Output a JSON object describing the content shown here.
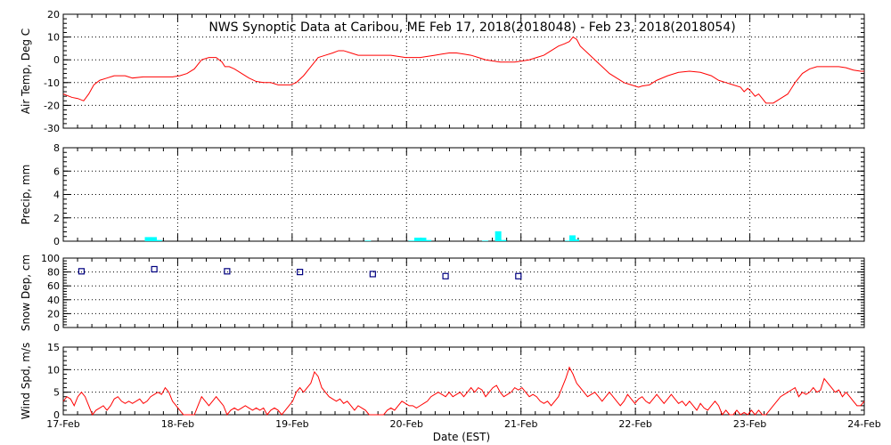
{
  "title": "NWS Synoptic Data at Caribou, ME   Feb 17, 2018(2018048) - Feb 23, 2018(2018054)",
  "xlabel": "Date (EST)",
  "x_ticks": [
    "17-Feb",
    "18-Feb",
    "19-Feb",
    "20-Feb",
    "21-Feb",
    "22-Feb",
    "23-Feb",
    "24-Feb"
  ],
  "colors": {
    "temp": "#ff0000",
    "precip": "#00ffff",
    "snow": "#000080",
    "wind": "#ff0000",
    "axes": "#000000"
  },
  "chart_data": [
    {
      "type": "line",
      "ylabel": "Air Temp, Deg C",
      "ylim": [
        -30,
        20
      ],
      "yticks": [
        "20",
        "10",
        "0",
        "-10",
        "-20",
        "-30"
      ],
      "grid": true,
      "x_unit": "days from 17-Feb 00:00",
      "points": [
        [
          0.0,
          -15
        ],
        [
          0.12,
          -16.5
        ],
        [
          0.2,
          -17
        ],
        [
          0.28,
          -18
        ],
        [
          0.35,
          -15
        ],
        [
          0.42,
          -11
        ],
        [
          0.5,
          -9
        ],
        [
          0.6,
          -8
        ],
        [
          0.7,
          -7
        ],
        [
          0.85,
          -7
        ],
        [
          0.95,
          -8
        ],
        [
          1.1,
          -7.5
        ],
        [
          1.3,
          -7.5
        ],
        [
          1.5,
          -7.5
        ],
        [
          1.6,
          -7
        ],
        [
          1.7,
          -6
        ],
        [
          1.8,
          -4
        ],
        [
          1.9,
          0
        ],
        [
          2.0,
          1
        ],
        [
          2.1,
          1
        ],
        [
          2.18,
          -1
        ],
        [
          2.22,
          -3
        ],
        [
          2.28,
          -3
        ],
        [
          2.35,
          -4
        ],
        [
          2.45,
          -6
        ],
        [
          2.55,
          -8
        ],
        [
          2.65,
          -9.5
        ],
        [
          2.75,
          -10
        ],
        [
          2.85,
          -10
        ],
        [
          2.95,
          -11
        ],
        [
          3.05,
          -11
        ],
        [
          3.12,
          -11
        ],
        [
          3.2,
          -10
        ],
        [
          3.3,
          -7
        ],
        [
          3.4,
          -3
        ],
        [
          3.5,
          1
        ],
        [
          3.6,
          2
        ],
        [
          3.7,
          3
        ],
        [
          3.78,
          4
        ],
        [
          3.85,
          4
        ],
        [
          3.95,
          3
        ],
        [
          4.05,
          2
        ],
        [
          4.2,
          2
        ],
        [
          4.35,
          2
        ],
        [
          4.5,
          2
        ],
        [
          4.6,
          1.5
        ],
        [
          4.7,
          1
        ],
        [
          4.8,
          1
        ],
        [
          4.9,
          1
        ],
        [
          5.0,
          1.5
        ],
        [
          5.1,
          2
        ],
        [
          5.2,
          2.5
        ],
        [
          5.3,
          3
        ],
        [
          5.4,
          3
        ],
        [
          5.5,
          2.5
        ],
        [
          5.6,
          2
        ],
        [
          5.7,
          1
        ],
        [
          5.8,
          0
        ],
        [
          5.9,
          -0.5
        ],
        [
          6.0,
          -1
        ],
        [
          6.1,
          -1
        ],
        [
          6.2,
          -1
        ],
        [
          6.3,
          -0.5
        ],
        [
          6.4,
          0
        ],
        [
          6.5,
          1
        ],
        [
          6.6,
          2
        ],
        [
          6.7,
          4
        ],
        [
          6.8,
          6
        ],
        [
          6.88,
          7
        ],
        [
          6.95,
          8
        ],
        [
          7.0,
          10
        ],
        [
          7.05,
          9
        ],
        [
          7.1,
          6
        ],
        [
          7.2,
          3
        ],
        [
          7.3,
          0
        ],
        [
          7.4,
          -3
        ],
        [
          7.5,
          -6
        ],
        [
          7.6,
          -8
        ],
        [
          7.7,
          -10
        ],
        [
          7.8,
          -11
        ],
        [
          7.9,
          -12
        ],
        [
          7.95,
          -11.5
        ],
        [
          8.05,
          -11
        ],
        [
          8.15,
          -9
        ],
        [
          8.3,
          -7
        ],
        [
          8.45,
          -5.5
        ],
        [
          8.6,
          -5
        ],
        [
          8.75,
          -5.5
        ],
        [
          8.9,
          -7
        ],
        [
          9.0,
          -9
        ],
        [
          9.1,
          -10
        ],
        [
          9.2,
          -11
        ],
        [
          9.3,
          -12
        ],
        [
          9.35,
          -14
        ],
        [
          9.4,
          -12.5
        ],
        [
          9.45,
          -14
        ],
        [
          9.5,
          -16
        ],
        [
          9.55,
          -15
        ],
        [
          9.6,
          -17
        ],
        [
          9.65,
          -19
        ],
        [
          9.75,
          -19
        ],
        [
          9.85,
          -17
        ],
        [
          9.95,
          -15
        ],
        [
          10.05,
          -10
        ],
        [
          10.15,
          -6
        ],
        [
          10.25,
          -4
        ],
        [
          10.35,
          -3
        ],
        [
          10.45,
          -3
        ],
        [
          10.55,
          -3
        ],
        [
          10.65,
          -3
        ],
        [
          10.75,
          -3.5
        ],
        [
          10.85,
          -4.5
        ],
        [
          10.95,
          -5
        ],
        [
          11.0,
          -5
        ]
      ]
    },
    {
      "type": "bar",
      "ylabel": "Precip, mm",
      "ylim": [
        0,
        8
      ],
      "yticks": [
        "8",
        "6",
        "4",
        "2",
        "0"
      ],
      "grid": true,
      "x_unit": "days from 17-Feb 00:00",
      "bars": [
        [
          1.12,
          0.35
        ],
        [
          1.2,
          0.35
        ],
        [
          1.27,
          0.1
        ],
        [
          4.14,
          0.05
        ],
        [
          4.74,
          0.05
        ],
        [
          4.82,
          0.3
        ],
        [
          4.9,
          0.3
        ],
        [
          4.97,
          0.1
        ],
        [
          5.75,
          0.05
        ],
        [
          5.93,
          0.85
        ],
        [
          6.0,
          0.1
        ],
        [
          6.89,
          0.05
        ],
        [
          6.95,
          0.5
        ],
        [
          7.0,
          0.15
        ]
      ]
    },
    {
      "type": "scatter",
      "ylabel": "Snow Dep, cm",
      "ylim": [
        0,
        100
      ],
      "yticks": [
        "100",
        "80",
        "60",
        "40",
        "20",
        "0"
      ],
      "grid": true,
      "x_unit": "days from 17-Feb 00:00",
      "points": [
        [
          0.25,
          81
        ],
        [
          1.25,
          84
        ],
        [
          2.25,
          81
        ],
        [
          3.25,
          80
        ],
        [
          4.25,
          77
        ],
        [
          5.25,
          74
        ],
        [
          6.25,
          74
        ]
      ]
    },
    {
      "type": "line",
      "ylabel": "Wind Spd, m/s",
      "ylim": [
        0,
        15
      ],
      "yticks": [
        "15",
        "10",
        "5",
        "0"
      ],
      "grid": true,
      "x_unit": "days from 17-Feb 00:00",
      "points": [
        [
          0.0,
          3
        ],
        [
          0.05,
          4
        ],
        [
          0.1,
          3.5
        ],
        [
          0.15,
          2
        ],
        [
          0.2,
          4
        ],
        [
          0.25,
          5
        ],
        [
          0.3,
          4
        ],
        [
          0.35,
          2
        ],
        [
          0.4,
          0
        ],
        [
          0.45,
          1
        ],
        [
          0.5,
          1.5
        ],
        [
          0.55,
          2
        ],
        [
          0.6,
          1
        ],
        [
          0.65,
          2
        ],
        [
          0.7,
          3.5
        ],
        [
          0.75,
          4
        ],
        [
          0.8,
          3
        ],
        [
          0.85,
          2.5
        ],
        [
          0.9,
          3
        ],
        [
          0.95,
          2.5
        ],
        [
          1.0,
          3
        ],
        [
          1.05,
          3.5
        ],
        [
          1.1,
          2.5
        ],
        [
          1.15,
          3
        ],
        [
          1.2,
          4
        ],
        [
          1.25,
          4.5
        ],
        [
          1.3,
          5
        ],
        [
          1.35,
          4.5
        ],
        [
          1.4,
          6
        ],
        [
          1.45,
          5
        ],
        [
          1.5,
          3
        ],
        [
          1.55,
          2
        ],
        [
          1.6,
          1
        ],
        [
          1.65,
          0
        ],
        [
          1.7,
          0
        ],
        [
          1.75,
          0
        ],
        [
          1.8,
          0
        ],
        [
          1.85,
          2
        ],
        [
          1.9,
          4
        ],
        [
          1.95,
          3
        ],
        [
          2.0,
          2
        ],
        [
          2.05,
          3
        ],
        [
          2.1,
          4
        ],
        [
          2.15,
          3
        ],
        [
          2.2,
          2
        ],
        [
          2.25,
          0
        ],
        [
          2.3,
          1
        ],
        [
          2.35,
          1.5
        ],
        [
          2.4,
          1
        ],
        [
          2.45,
          1.5
        ],
        [
          2.5,
          2
        ],
        [
          2.55,
          1.5
        ],
        [
          2.6,
          1
        ],
        [
          2.65,
          1.5
        ],
        [
          2.7,
          1
        ],
        [
          2.75,
          1.5
        ],
        [
          2.8,
          0
        ],
        [
          2.85,
          1
        ],
        [
          2.9,
          1.5
        ],
        [
          2.95,
          1
        ],
        [
          3.0,
          0
        ],
        [
          3.05,
          1
        ],
        [
          3.1,
          2
        ],
        [
          3.15,
          3
        ],
        [
          3.2,
          5
        ],
        [
          3.25,
          6
        ],
        [
          3.3,
          5
        ],
        [
          3.35,
          6
        ],
        [
          3.4,
          7
        ],
        [
          3.45,
          9.5
        ],
        [
          3.5,
          8.5
        ],
        [
          3.55,
          6
        ],
        [
          3.6,
          5
        ],
        [
          3.65,
          4
        ],
        [
          3.7,
          3.5
        ],
        [
          3.75,
          3
        ],
        [
          3.8,
          3.5
        ],
        [
          3.85,
          2.5
        ],
        [
          3.9,
          3
        ],
        [
          3.95,
          2
        ],
        [
          4.0,
          1
        ],
        [
          4.05,
          2
        ],
        [
          4.1,
          1.5
        ],
        [
          4.15,
          1
        ],
        [
          4.2,
          0
        ],
        [
          4.25,
          0
        ],
        [
          4.3,
          0
        ],
        [
          4.35,
          0
        ],
        [
          4.4,
          0
        ],
        [
          4.45,
          1
        ],
        [
          4.5,
          1.5
        ],
        [
          4.55,
          1
        ],
        [
          4.6,
          2
        ],
        [
          4.65,
          3
        ],
        [
          4.7,
          2.5
        ],
        [
          4.75,
          2
        ],
        [
          4.8,
          2
        ],
        [
          4.85,
          1.5
        ],
        [
          4.9,
          2
        ],
        [
          4.95,
          2.5
        ],
        [
          5.0,
          3
        ],
        [
          5.05,
          4
        ],
        [
          5.1,
          4.5
        ],
        [
          5.15,
          5
        ],
        [
          5.2,
          4.5
        ],
        [
          5.25,
          4
        ],
        [
          5.3,
          5
        ],
        [
          5.35,
          4
        ],
        [
          5.4,
          4.5
        ],
        [
          5.45,
          5
        ],
        [
          5.5,
          4
        ],
        [
          5.55,
          5
        ],
        [
          5.6,
          6
        ],
        [
          5.65,
          5
        ],
        [
          5.7,
          6
        ],
        [
          5.75,
          5.5
        ],
        [
          5.8,
          4
        ],
        [
          5.85,
          5
        ],
        [
          5.9,
          6
        ],
        [
          5.95,
          6.5
        ],
        [
          6.0,
          5
        ],
        [
          6.05,
          4
        ],
        [
          6.1,
          4.5
        ],
        [
          6.15,
          5
        ],
        [
          6.2,
          6
        ],
        [
          6.25,
          5.5
        ],
        [
          6.3,
          6
        ],
        [
          6.35,
          5
        ],
        [
          6.4,
          4
        ],
        [
          6.45,
          4.5
        ],
        [
          6.5,
          4
        ],
        [
          6.55,
          3
        ],
        [
          6.6,
          2.5
        ],
        [
          6.65,
          3
        ],
        [
          6.7,
          2
        ],
        [
          6.75,
          3
        ],
        [
          6.8,
          4
        ],
        [
          6.85,
          6
        ],
        [
          6.9,
          8
        ],
        [
          6.95,
          10.5
        ],
        [
          7.0,
          9
        ],
        [
          7.05,
          7
        ],
        [
          7.1,
          6
        ],
        [
          7.15,
          5
        ],
        [
          7.2,
          4
        ],
        [
          7.25,
          4.5
        ],
        [
          7.3,
          5
        ],
        [
          7.35,
          4
        ],
        [
          7.4,
          3
        ],
        [
          7.45,
          4
        ],
        [
          7.5,
          5
        ],
        [
          7.55,
          4
        ],
        [
          7.6,
          3
        ],
        [
          7.65,
          2
        ],
        [
          7.7,
          3
        ],
        [
          7.75,
          4.5
        ],
        [
          7.8,
          3.5
        ],
        [
          7.85,
          2.5
        ],
        [
          7.9,
          3.5
        ],
        [
          7.95,
          4
        ],
        [
          8.0,
          3
        ],
        [
          8.05,
          2.5
        ],
        [
          8.1,
          3.5
        ],
        [
          8.15,
          4.5
        ],
        [
          8.2,
          3.5
        ],
        [
          8.25,
          2.5
        ],
        [
          8.3,
          3.5
        ],
        [
          8.35,
          4.5
        ],
        [
          8.4,
          3.5
        ],
        [
          8.45,
          2.5
        ],
        [
          8.5,
          3
        ],
        [
          8.55,
          2
        ],
        [
          8.6,
          3
        ],
        [
          8.65,
          2
        ],
        [
          8.7,
          1
        ],
        [
          8.75,
          2.5
        ],
        [
          8.8,
          1.5
        ],
        [
          8.85,
          1
        ],
        [
          8.9,
          2
        ],
        [
          8.95,
          3
        ],
        [
          9.0,
          2
        ],
        [
          9.05,
          0
        ],
        [
          9.1,
          1
        ],
        [
          9.15,
          0
        ],
        [
          9.2,
          0
        ],
        [
          9.25,
          1
        ],
        [
          9.3,
          0
        ],
        [
          9.35,
          0.5
        ],
        [
          9.4,
          0
        ],
        [
          9.45,
          1
        ],
        [
          9.5,
          0
        ],
        [
          9.55,
          1
        ],
        [
          9.6,
          0
        ],
        [
          9.65,
          0
        ],
        [
          9.7,
          1
        ],
        [
          9.75,
          2
        ],
        [
          9.8,
          3
        ],
        [
          9.85,
          4
        ],
        [
          9.9,
          4.5
        ],
        [
          9.95,
          5
        ],
        [
          10.0,
          5.5
        ],
        [
          10.05,
          6
        ],
        [
          10.1,
          4
        ],
        [
          10.15,
          5
        ],
        [
          10.2,
          4.5
        ],
        [
          10.25,
          5
        ],
        [
          10.3,
          6
        ],
        [
          10.35,
          5
        ],
        [
          10.4,
          5.5
        ],
        [
          10.45,
          8
        ],
        [
          10.5,
          7
        ],
        [
          10.55,
          6
        ],
        [
          10.6,
          5
        ],
        [
          10.65,
          5.5
        ],
        [
          10.7,
          4
        ],
        [
          10.75,
          5
        ],
        [
          10.8,
          4
        ],
        [
          10.85,
          3
        ],
        [
          10.9,
          2
        ],
        [
          10.95,
          2
        ],
        [
          11.0,
          3
        ]
      ]
    }
  ]
}
